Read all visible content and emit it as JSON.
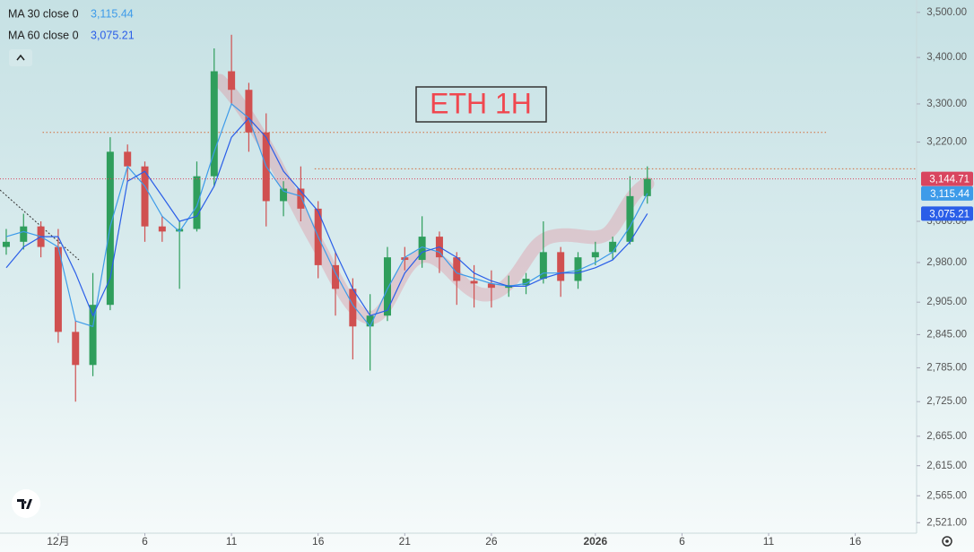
{
  "chart_data": {
    "type": "candlestick",
    "annotation": "ETH  1H",
    "x": [
      -3,
      -2,
      -1,
      0,
      1,
      2,
      3,
      4,
      5,
      6,
      7,
      8,
      9,
      10,
      11,
      12,
      13,
      14,
      15,
      16,
      17,
      18,
      19,
      20,
      21,
      22,
      23,
      24,
      25,
      26,
      27,
      28,
      29,
      30,
      31,
      32,
      33,
      34
    ],
    "ohlc": {
      "open": [
        3010,
        3020,
        3050,
        3010,
        2850,
        2790,
        2900,
        3200,
        3170,
        3050,
        3040,
        3045,
        3150,
        3370,
        3330,
        3240,
        3100,
        3125,
        3085,
        2975,
        2930,
        2860,
        2880,
        2990,
        2985,
        3030,
        2990,
        2945,
        2940,
        2932,
        2937,
        2949,
        3000,
        2945,
        2990,
        3000,
        3020,
        3110
      ],
      "high": [
        3045,
        3075,
        3060,
        3045,
        2870,
        2960,
        3230,
        3215,
        3180,
        3070,
        3060,
        3180,
        3420,
        3450,
        3345,
        3280,
        3140,
        3170,
        3100,
        3000,
        2950,
        2920,
        3010,
        3010,
        3070,
        3040,
        3000,
        2975,
        2965,
        2955,
        2960,
        3060,
        3010,
        3000,
        3020,
        3030,
        3150,
        3170
      ],
      "low": [
        2995,
        3005,
        2990,
        2830,
        2725,
        2770,
        2890,
        3140,
        3020,
        3020,
        2930,
        3040,
        3130,
        3300,
        3200,
        3050,
        3070,
        3060,
        2950,
        2880,
        2800,
        2780,
        2870,
        2965,
        2970,
        2960,
        2900,
        2895,
        2895,
        2915,
        2920,
        2940,
        2915,
        2930,
        2975,
        2985,
        3015,
        3095
      ],
      "close": [
        3020,
        3050,
        3010,
        2850,
        2790,
        2900,
        3200,
        3170,
        3050,
        3040,
        3045,
        3150,
        3370,
        3330,
        3240,
        3100,
        3125,
        3085,
        2975,
        2930,
        2860,
        2880,
        2990,
        2985,
        3030,
        2990,
        2945,
        2940,
        2932,
        2937,
        2949,
        3000,
        2945,
        2990,
        3000,
        3020,
        3110,
        3144.71
      ],
      "up_color": "#2f9e5c",
      "down_color": "#d05050",
      "last_label": "3,144.71",
      "last_color": "#d9455f"
    },
    "series": [
      {
        "name": "MA 30 close 0",
        "color": "#3d9be9",
        "last_label": "3,115.44",
        "values": [
          3030,
          3040,
          3030,
          3010,
          2870,
          2860,
          3050,
          3170,
          3130,
          3070,
          3040,
          3090,
          3200,
          3300,
          3270,
          3170,
          3120,
          3110,
          3030,
          2960,
          2900,
          2860,
          2930,
          2990,
          3010,
          3000,
          2960,
          2950,
          2940,
          2935,
          2940,
          2960,
          2960,
          2965,
          2980,
          3000,
          3050,
          3115.44
        ]
      },
      {
        "name": "MA 60 close 0",
        "color": "#2a5ee8",
        "last_label": "3,075.21",
        "values": [
          2970,
          3010,
          3030,
          3030,
          2960,
          2880,
          2950,
          3140,
          3160,
          3110,
          3060,
          3070,
          3130,
          3230,
          3270,
          3230,
          3160,
          3120,
          3080,
          3000,
          2930,
          2880,
          2890,
          2960,
          3000,
          3010,
          2990,
          2960,
          2945,
          2935,
          2935,
          2950,
          2960,
          2960,
          2970,
          2985,
          3020,
          3075.21
        ]
      }
    ],
    "levels": [
      {
        "value": 3240,
        "x": [
          -0.9,
          44.4
        ]
      },
      {
        "value": 3165,
        "x": [
          14.8,
          49.5
        ]
      }
    ],
    "log_scale": true,
    "xlim": [
      -3.36,
      49.54
    ],
    "xticks": [
      {
        "value": 0,
        "label": "12月"
      },
      {
        "value": 5,
        "label": "6"
      },
      {
        "value": 10,
        "label": "11"
      },
      {
        "value": 15,
        "label": "16"
      },
      {
        "value": 20,
        "label": "21"
      },
      {
        "value": 25,
        "label": "26"
      },
      {
        "value": 31,
        "label": "2026"
      },
      {
        "value": 36,
        "label": "6"
      },
      {
        "value": 41,
        "label": "11"
      },
      {
        "value": 46,
        "label": "16"
      }
    ],
    "ylim": [
      2504,
      3528
    ],
    "yticks": [
      {
        "value": 3500,
        "label": "3,500.00"
      },
      {
        "value": 3400,
        "label": "3,400.00"
      },
      {
        "value": 3300,
        "label": "3,300.00"
      },
      {
        "value": 3220,
        "label": "3,220.00"
      },
      {
        "value": 3060,
        "label": "3,060.00"
      },
      {
        "value": 2980,
        "label": "2,980.00"
      },
      {
        "value": 2905,
        "label": "2,905.00"
      },
      {
        "value": 2845,
        "label": "2,845.00"
      },
      {
        "value": 2785,
        "label": "2,785.00"
      },
      {
        "value": 2725,
        "label": "2,725.00"
      },
      {
        "value": 2665,
        "label": "2,665.00"
      },
      {
        "value": 2615,
        "label": "2,615.00"
      },
      {
        "value": 2565,
        "label": "2,565.00"
      },
      {
        "value": 2521,
        "label": "2,521.00"
      }
    ]
  }
}
